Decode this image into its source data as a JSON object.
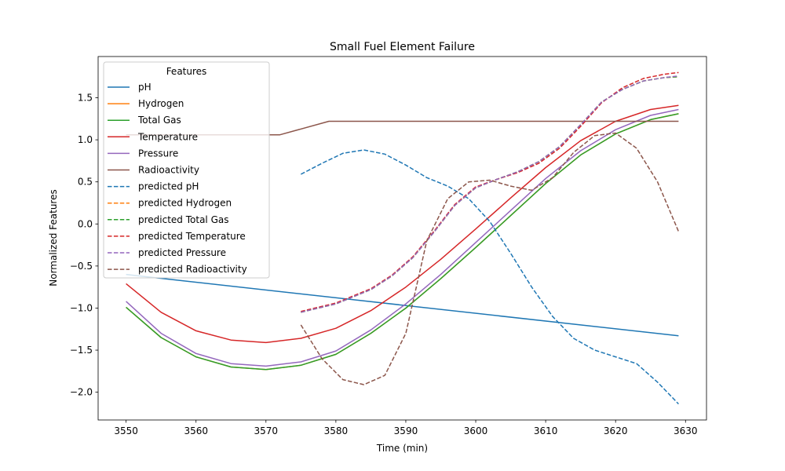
{
  "chart_data": {
    "type": "line",
    "title": "Small Fuel Element Failure",
    "xlabel": "Time (min)",
    "ylabel": "Normalized Features",
    "xlim": [
      3546,
      3633
    ],
    "ylim": [
      -2.33,
      1.99
    ],
    "xticks": [
      3550,
      3560,
      3570,
      3580,
      3590,
      3600,
      3610,
      3620,
      3630
    ],
    "yticks": [
      -2.0,
      -1.5,
      -1.0,
      -0.5,
      0.0,
      0.5,
      1.0,
      1.5
    ],
    "xtick_labels": [
      "3550",
      "3560",
      "3570",
      "3580",
      "3590",
      "3600",
      "3610",
      "3620",
      "3630"
    ],
    "ytick_labels": [
      "−2.0",
      "−1.5",
      "−1.0",
      "−0.5",
      "0.0",
      "0.5",
      "1.0",
      "1.5"
    ],
    "grid": false,
    "legend": {
      "title": "Features",
      "placement": "upper-left"
    },
    "series": [
      {
        "name": "pH",
        "color": "#1f77b4",
        "dash": "solid",
        "x": [
          3550,
          3629
        ],
        "y": [
          -0.6,
          -1.33
        ]
      },
      {
        "name": "Hydrogen",
        "color": "#ff7f0e",
        "dash": "solid",
        "x": [
          3550,
          3555,
          3560,
          3565,
          3570,
          3575,
          3580,
          3585,
          3590,
          3595,
          3600,
          3605,
          3610,
          3615,
          3620,
          3625,
          3629
        ],
        "y": [
          -0.99,
          -1.35,
          -1.58,
          -1.7,
          -1.73,
          -1.68,
          -1.55,
          -1.3,
          -1.0,
          -0.65,
          -0.28,
          0.1,
          0.48,
          0.82,
          1.07,
          1.24,
          1.31
        ]
      },
      {
        "name": "Total Gas",
        "color": "#2ca02c",
        "dash": "solid",
        "x": [
          3550,
          3555,
          3560,
          3565,
          3570,
          3575,
          3580,
          3585,
          3590,
          3595,
          3600,
          3605,
          3610,
          3615,
          3620,
          3625,
          3629
        ],
        "y": [
          -0.99,
          -1.35,
          -1.58,
          -1.7,
          -1.73,
          -1.68,
          -1.55,
          -1.3,
          -1.0,
          -0.65,
          -0.28,
          0.1,
          0.48,
          0.82,
          1.07,
          1.24,
          1.31
        ]
      },
      {
        "name": "Temperature",
        "color": "#d62728",
        "dash": "solid",
        "x": [
          3550,
          3555,
          3560,
          3565,
          3570,
          3575,
          3580,
          3585,
          3590,
          3595,
          3600,
          3605,
          3610,
          3615,
          3620,
          3625,
          3629
        ],
        "y": [
          -0.71,
          -1.05,
          -1.27,
          -1.38,
          -1.41,
          -1.36,
          -1.24,
          -1.03,
          -0.75,
          -0.42,
          -0.06,
          0.31,
          0.67,
          0.99,
          1.22,
          1.36,
          1.41
        ]
      },
      {
        "name": "Pressure",
        "color": "#9467bd",
        "dash": "solid",
        "x": [
          3550,
          3555,
          3560,
          3565,
          3570,
          3575,
          3580,
          3585,
          3590,
          3595,
          3600,
          3605,
          3610,
          3615,
          3620,
          3625,
          3629
        ],
        "y": [
          -0.92,
          -1.3,
          -1.54,
          -1.66,
          -1.69,
          -1.64,
          -1.51,
          -1.26,
          -0.95,
          -0.6,
          -0.22,
          0.16,
          0.54,
          0.87,
          1.12,
          1.29,
          1.36
        ]
      },
      {
        "name": "Radioactivity",
        "color": "#8c564b",
        "dash": "solid",
        "x": [
          3550,
          3572,
          3579,
          3629
        ],
        "y": [
          1.06,
          1.06,
          1.22,
          1.22
        ]
      },
      {
        "name": "predicted pH",
        "color": "#1f77b4",
        "dash": "dashed",
        "x": [
          3575,
          3578,
          3581,
          3584,
          3587,
          3590,
          3593,
          3596,
          3599,
          3602,
          3605,
          3608,
          3611,
          3614,
          3617,
          3620,
          3623,
          3626,
          3629
        ],
        "y": [
          0.59,
          0.72,
          0.84,
          0.88,
          0.83,
          0.7,
          0.55,
          0.45,
          0.3,
          0.03,
          -0.35,
          -0.75,
          -1.1,
          -1.36,
          -1.5,
          -1.58,
          -1.66,
          -1.88,
          -2.14
        ]
      },
      {
        "name": "predicted Hydrogen",
        "color": "#ff7f0e",
        "dash": "dashed",
        "x": [
          3575,
          3580,
          3585,
          3588,
          3591,
          3594,
          3597,
          3600,
          3603,
          3606,
          3609,
          3612,
          3615,
          3618,
          3621,
          3624,
          3627,
          3629
        ],
        "y": [
          -1.05,
          -0.95,
          -0.78,
          -0.62,
          -0.4,
          -0.1,
          0.22,
          0.43,
          0.53,
          0.62,
          0.74,
          0.92,
          1.18,
          1.45,
          1.6,
          1.7,
          1.74,
          1.75
        ]
      },
      {
        "name": "predicted Total Gas",
        "color": "#2ca02c",
        "dash": "dashed",
        "x": [
          3575,
          3580,
          3585,
          3588,
          3591,
          3594,
          3597,
          3600,
          3603,
          3606,
          3609,
          3612,
          3615,
          3618,
          3621,
          3624,
          3627,
          3629
        ],
        "y": [
          -1.05,
          -0.95,
          -0.78,
          -0.62,
          -0.4,
          -0.1,
          0.22,
          0.43,
          0.53,
          0.62,
          0.74,
          0.92,
          1.18,
          1.45,
          1.6,
          1.7,
          1.74,
          1.75
        ]
      },
      {
        "name": "predicted Temperature",
        "color": "#d62728",
        "dash": "dashed",
        "x": [
          3575,
          3580,
          3585,
          3588,
          3591,
          3594,
          3597,
          3600,
          3603,
          3606,
          3609,
          3612,
          3615,
          3618,
          3621,
          3624,
          3627,
          3629
        ],
        "y": [
          -1.04,
          -0.94,
          -0.77,
          -0.61,
          -0.39,
          -0.09,
          0.23,
          0.44,
          0.53,
          0.61,
          0.72,
          0.9,
          1.16,
          1.44,
          1.62,
          1.73,
          1.78,
          1.8
        ]
      },
      {
        "name": "predicted Pressure",
        "color": "#9467bd",
        "dash": "dashed",
        "x": [
          3575,
          3580,
          3585,
          3588,
          3591,
          3594,
          3597,
          3600,
          3603,
          3606,
          3609,
          3612,
          3615,
          3618,
          3621,
          3624,
          3627,
          3629
        ],
        "y": [
          -1.05,
          -0.95,
          -0.78,
          -0.62,
          -0.4,
          -0.1,
          0.22,
          0.43,
          0.53,
          0.62,
          0.74,
          0.92,
          1.18,
          1.45,
          1.6,
          1.7,
          1.74,
          1.76
        ]
      },
      {
        "name": "predicted Radioactivity",
        "color": "#8c564b",
        "dash": "dashed",
        "x": [
          3575,
          3578,
          3581,
          3584,
          3587,
          3590,
          3593,
          3596,
          3599,
          3602,
          3605,
          3608,
          3611,
          3614,
          3617,
          3620,
          3623,
          3626,
          3629
        ],
        "y": [
          -1.2,
          -1.6,
          -1.85,
          -1.91,
          -1.8,
          -1.3,
          -0.2,
          0.3,
          0.5,
          0.52,
          0.45,
          0.4,
          0.55,
          0.85,
          1.05,
          1.08,
          0.9,
          0.5,
          -0.09
        ]
      }
    ]
  }
}
